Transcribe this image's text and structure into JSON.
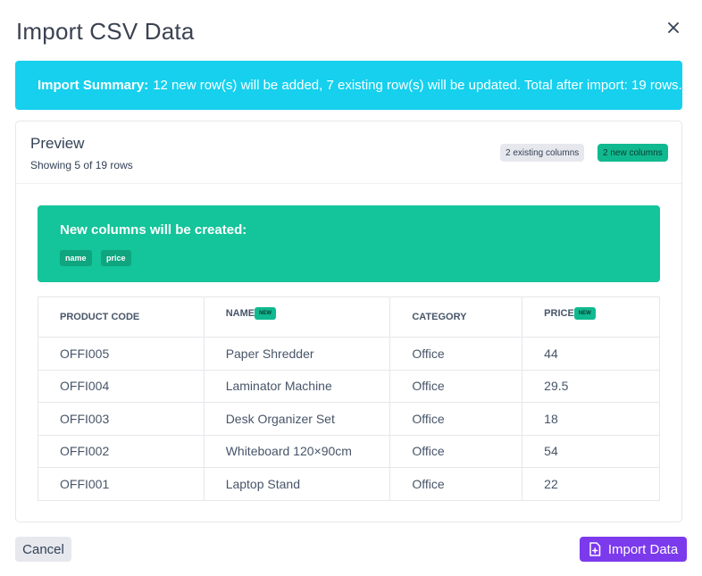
{
  "dialog": {
    "title": "Import CSV Data",
    "close_icon": "close-icon"
  },
  "summary": {
    "label": "Import Summary:",
    "text": "12 new row(s) will be added, 7 existing row(s) will be updated. Total after import: 19 rows.",
    "color": "#16d0ee"
  },
  "preview": {
    "title": "Preview",
    "subtitle": "Showing 5 of 19 rows",
    "existing_badge": "2 existing columns",
    "new_badge": "2 new columns"
  },
  "new_columns": {
    "title": "New columns will be created:",
    "items": [
      "name",
      "price"
    ],
    "color": "#14c49a"
  },
  "table": {
    "headers": [
      "PRODUCT CODE",
      "NAME",
      "CATEGORY",
      "PRICE"
    ],
    "new_tag": "NEW",
    "rows": [
      [
        "OFFI005",
        "Paper Shredder",
        "Office",
        "44"
      ],
      [
        "OFFI004",
        "Laminator Machine",
        "Office",
        "29.5"
      ],
      [
        "OFFI003",
        "Desk Organizer Set",
        "Office",
        "18"
      ],
      [
        "OFFI002",
        "Whiteboard 120×90cm",
        "Office",
        "54"
      ],
      [
        "OFFI001",
        "Laptop Stand",
        "Office",
        "22"
      ]
    ]
  },
  "footer": {
    "cancel_label": "Cancel",
    "import_label": "Import Data",
    "import_icon": "file-import-icon",
    "accent": "#7c3aed"
  }
}
